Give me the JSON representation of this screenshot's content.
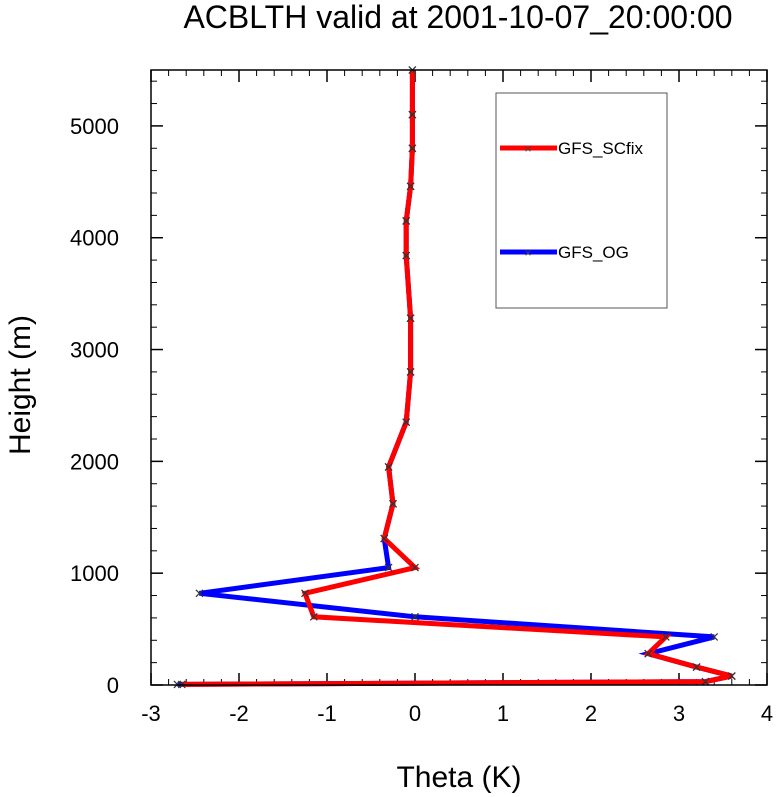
{
  "chart_data": {
    "type": "line",
    "title": "ACBLTH valid at 2001-10-07_20:00:00",
    "xlabel": "Theta (K)",
    "ylabel": "Height (m)",
    "xlim": [
      -3,
      4
    ],
    "ylim": [
      0,
      5500
    ],
    "xticks": [
      -3,
      -2,
      -1,
      0,
      1,
      2,
      3,
      4
    ],
    "yticks": [
      0,
      1000,
      2000,
      3000,
      4000,
      5000
    ],
    "legend_position": "top-right",
    "series": [
      {
        "name": "GFS_SCfix",
        "color": "#ff0000",
        "x": [
          -2.65,
          3.3,
          3.6,
          3.2,
          2.65,
          2.85,
          -1.15,
          -1.25,
          0.0,
          -0.35,
          -0.25,
          -0.3,
          -0.1,
          -0.05,
          -0.05,
          -0.1,
          -0.1,
          -0.05,
          -0.03,
          -0.03,
          -0.03
        ],
        "y": [
          5,
          30,
          80,
          160,
          280,
          430,
          610,
          820,
          1050,
          1310,
          1620,
          1950,
          2350,
          2800,
          3280,
          3840,
          4150,
          4460,
          4800,
          5100,
          5500
        ]
      },
      {
        "name": "GFS_OG",
        "color": "#0000ff",
        "x": [
          -2.7,
          3.3,
          3.6,
          3.2,
          2.65,
          3.4,
          0.0,
          -2.45,
          -0.3,
          -0.35,
          -0.25,
          -0.3,
          -0.1,
          -0.05,
          -0.05,
          -0.1,
          -0.1,
          -0.05,
          -0.03,
          -0.03,
          -0.03
        ],
        "y": [
          5,
          30,
          80,
          160,
          280,
          430,
          610,
          820,
          1050,
          1310,
          1620,
          1950,
          2350,
          2800,
          3280,
          3840,
          4150,
          4460,
          4800,
          5100,
          5500
        ]
      }
    ]
  }
}
